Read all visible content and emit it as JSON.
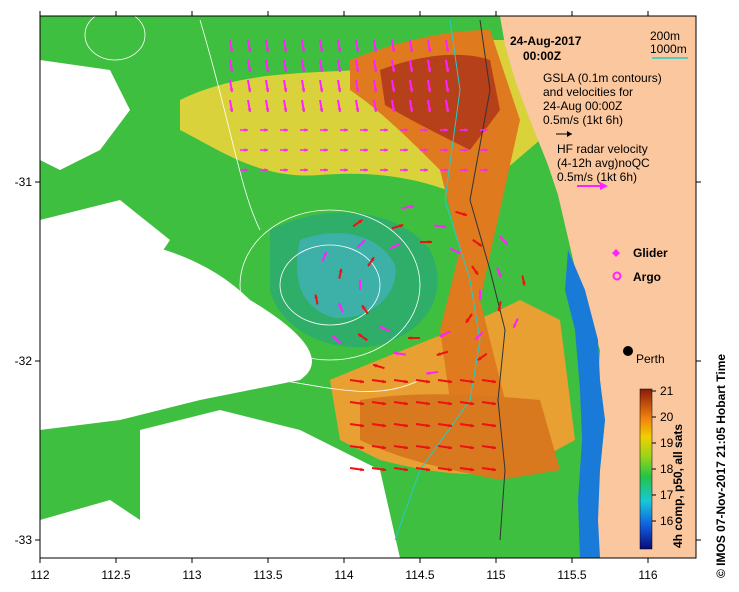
{
  "map": {
    "date_title": "24-Aug-2017",
    "time_title": "00:00Z",
    "bathy_legend": [
      "200m",
      "1000m"
    ],
    "gsla_note": [
      "GSLA (0.1m contours)",
      "and velocities for",
      "24-Aug 00:00Z",
      "0.5m/s (1kt 6h)"
    ],
    "hf_note": [
      "HF radar velocity",
      "(4-12h avg)noQC",
      "0.5m/s (1kt 6h)"
    ],
    "glider_label": "Glider",
    "argo_label": "Argo",
    "city_label": "Perth",
    "credit": "© IMOS 07-Nov-2017 21:05 Hobart Time",
    "colorbar_title": "4h comp, p50, all sats",
    "colorbar_ticks": [
      "21",
      "20",
      "19",
      "18",
      "17",
      "16"
    ],
    "lon_ticks": [
      "112",
      "112.5",
      "113",
      "113.5",
      "114",
      "114.5",
      "115",
      "115.5",
      "116"
    ],
    "lat_ticks": [
      "-31",
      "-32",
      "-33"
    ],
    "colors": {
      "land": "#fbc79e",
      "hf_arrow": "#ff22ff",
      "model_arrow": "#ee1111",
      "bathy_200": "#333333",
      "bathy_1000": "#22cccc",
      "contour": "#ffffff"
    }
  }
}
